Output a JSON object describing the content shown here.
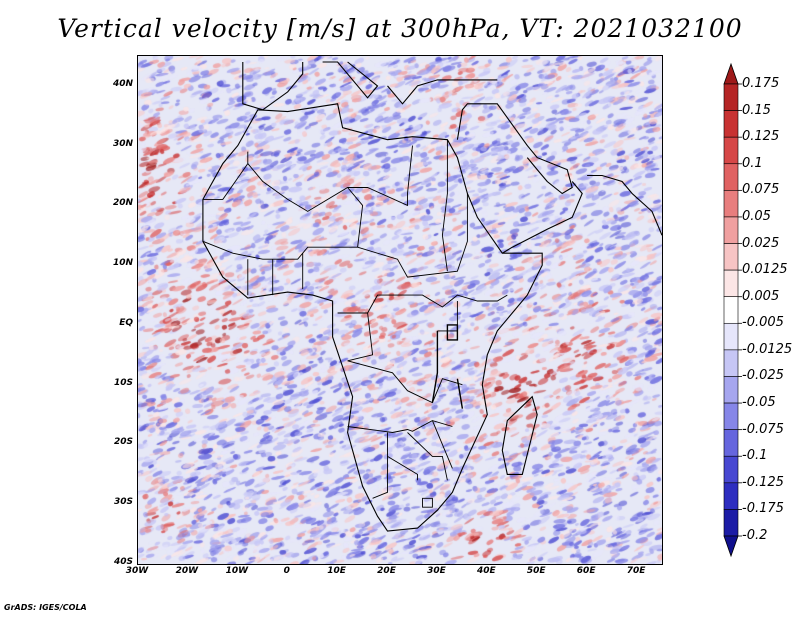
{
  "title": "Vertical velocity [m/s] at 300hPa, VT: 2021032100",
  "credit": "GrADS: IGES/COLA",
  "latitude_labels": [
    "40N",
    "30N",
    "20N",
    "10N",
    "EQ",
    "10S",
    "20S",
    "30S",
    "40S"
  ],
  "latitude_values": [
    40,
    30,
    20,
    10,
    0,
    -10,
    -20,
    -30,
    -40
  ],
  "longitude_labels": [
    "30W",
    "20W",
    "10W",
    "0",
    "10E",
    "20E",
    "30E",
    "40E",
    "50E",
    "60E",
    "70E"
  ],
  "longitude_values": [
    -30,
    -20,
    -10,
    0,
    10,
    20,
    30,
    40,
    50,
    60,
    70
  ],
  "extent": {
    "lon_min": -30,
    "lon_max": 75,
    "lat_min": -40,
    "lat_max": 45
  },
  "colorbar": {
    "labels": [
      "0.175",
      "0.15",
      "0.125",
      "0.1",
      "0.075",
      "0.05",
      "0.025",
      "0.0125",
      "0.005",
      "-0.005",
      "-0.0125",
      "-0.025",
      "-0.05",
      "-0.075",
      "-0.1",
      "-0.125",
      "-0.175",
      "-0.2"
    ],
    "colors": [
      "#9e1a1a",
      "#b52525",
      "#c83232",
      "#d64747",
      "#e06262",
      "#e87e7e",
      "#f0a0a0",
      "#f7c4c4",
      "#fce6e6",
      "#ffffff",
      "#e6e6fb",
      "#c6c6f5",
      "#a6a6ef",
      "#8686e8",
      "#6666de",
      "#4848d2",
      "#2e2ec0",
      "#1c1ca6",
      "#10108e"
    ]
  },
  "colors": {
    "positive": "#c83232",
    "negative": "#4848d2",
    "background": "#e6e8f6"
  }
}
